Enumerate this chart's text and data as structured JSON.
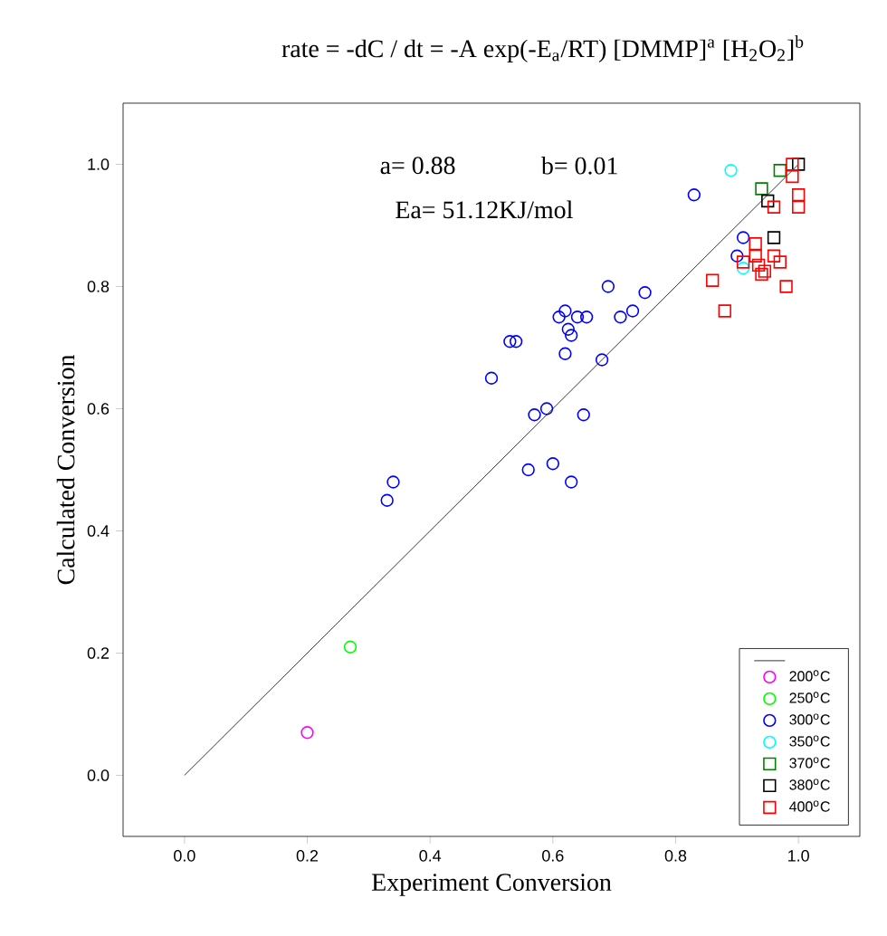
{
  "chart_data": {
    "type": "scatter",
    "title": "rate = -dC / dt = -A exp(-E$_{a}$/RT) [DMMP]$^{a}$ [H$_{2}$O$_{2}$]$^{b}$",
    "xlabel": "Experiment Conversion",
    "ylabel": "Calculated Conversion",
    "annotations": [
      "a= 0.88",
      "b= 0.01",
      "Ea= 51.12KJ/mol"
    ],
    "xlim": [
      -0.1,
      1.1
    ],
    "ylim": [
      -0.1,
      1.1
    ],
    "xticks": [
      {
        "value": 0,
        "label": "0.0"
      },
      {
        "value": 0.2,
        "label": "0.2"
      },
      {
        "value": 0.4,
        "label": "0.4"
      },
      {
        "value": 0.6,
        "label": "0.6"
      },
      {
        "value": 0.8,
        "label": "0.8"
      },
      {
        "value": 1,
        "label": "1.0"
      }
    ],
    "yticks": [
      {
        "value": 0,
        "label": "0.0"
      },
      {
        "value": 0.2,
        "label": "0.2"
      },
      {
        "value": 0.4,
        "label": "0.4"
      },
      {
        "value": 0.6,
        "label": "0.6"
      },
      {
        "value": 0.8,
        "label": "0.8"
      },
      {
        "value": 1,
        "label": "1.0"
      }
    ],
    "legend": "bottom right",
    "series": [
      {
        "type": "line",
        "color": "#000000",
        "marker": "none",
        "x": [
          0,
          1
        ],
        "values": [
          0,
          1
        ]
      },
      {
        "name": "200$^{o}$C",
        "color": "#ff00ff",
        "marker": "circle",
        "x": [
          0.2
        ],
        "values": [
          0.07
        ]
      },
      {
        "name": "250$^{o}$C",
        "color": "#00ff00",
        "marker": "circle",
        "x": [
          0.27
        ],
        "values": [
          0.21
        ]
      },
      {
        "name": "300$^{o}$C",
        "color": "#0000ff",
        "marker": "circle",
        "x": [
          0.33,
          0.34,
          0.5,
          0.53,
          0.54,
          0.57,
          0.59,
          0.56,
          0.6,
          0.63,
          0.65,
          0.62,
          0.68,
          0.63,
          0.625,
          0.62,
          0.61,
          0.64,
          0.655,
          0.69,
          0.71,
          0.73,
          0.75,
          0.83,
          0.91,
          0.9
        ],
        "values": [
          0.45,
          0.48,
          0.65,
          0.71,
          0.71,
          0.59,
          0.6,
          0.5,
          0.51,
          0.48,
          0.59,
          0.69,
          0.68,
          0.72,
          0.73,
          0.76,
          0.75,
          0.75,
          0.75,
          0.8,
          0.75,
          0.76,
          0.79,
          0.95,
          0.88,
          0.85
        ]
      },
      {
        "name": "350$^{o}$C",
        "color": "#00ffff",
        "marker": "circle",
        "x": [
          0.89,
          0.91
        ],
        "values": [
          0.99,
          0.83
        ]
      },
      {
        "name": "370$^{o}$C",
        "color": "#008000",
        "marker": "square",
        "x": [
          0.97,
          0.94
        ],
        "values": [
          0.99,
          0.96
        ]
      },
      {
        "name": "380$^{o}$C",
        "color": "#000000",
        "marker": "square",
        "x": [
          1.0,
          0.95,
          0.96
        ],
        "values": [
          1.0,
          0.94,
          0.88
        ]
      },
      {
        "name": "400$^{o}$C",
        "color": "#ff0000",
        "marker": "square",
        "x": [
          0.99,
          0.99,
          1.0,
          1.0,
          0.96,
          0.93,
          0.93,
          0.91,
          0.935,
          0.96,
          0.97,
          0.945,
          0.94,
          0.98,
          0.86,
          0.88
        ],
        "values": [
          1.0,
          0.98,
          0.95,
          0.93,
          0.93,
          0.87,
          0.85,
          0.84,
          0.835,
          0.85,
          0.84,
          0.825,
          0.82,
          0.8,
          0.81,
          0.76
        ]
      }
    ]
  }
}
